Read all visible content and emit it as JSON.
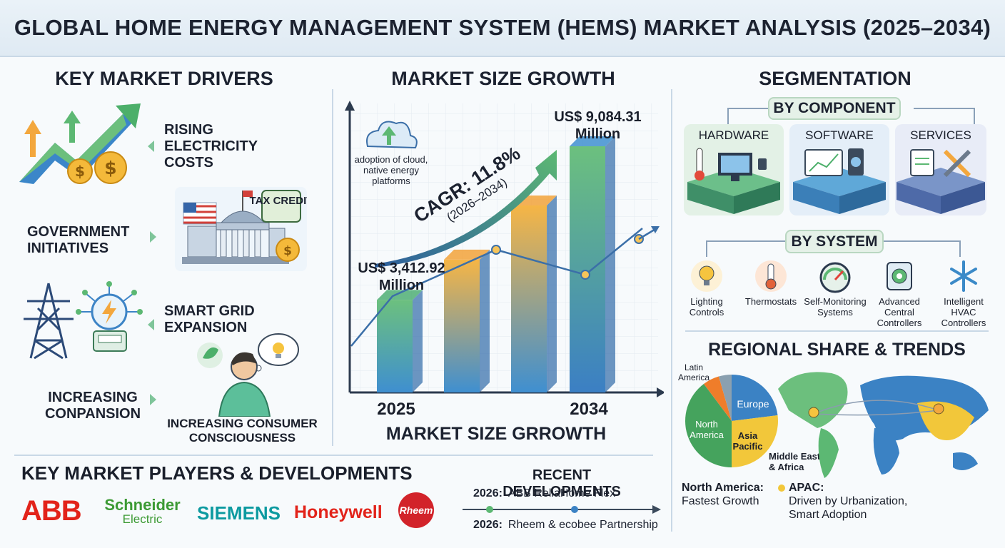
{
  "title": "GLOBAL HOME ENERGY MANAGEMENT SYSTEM (HEMS) MARKET ANALYSIS (2025–2034)",
  "drivers": {
    "heading": "KEY MARKET DRIVERS",
    "items": [
      {
        "label": "RISING ELECTRICITY COSTS",
        "icon": "rising-cost-icon"
      },
      {
        "label": "GOVERNMENT INITIATIVES",
        "icon": "government-building-icon"
      },
      {
        "label": "SMART GRID EXPANSION",
        "icon": "power-tower-icon"
      },
      {
        "label": "INCREASING CONPANSION",
        "icon": "consumer-thinking-icon"
      }
    ],
    "tax_badge": "TAX CREDIT",
    "consumer_caption": "INCREASING CONSUMER CONSCIOUSNESS"
  },
  "growth": {
    "heading": "MARKET SIZE GROWTH",
    "footer": "MARKET SIZE GRROWTH",
    "cloud_note": "adoption of cloud, native energy platforms",
    "cagr": "CAGR: 11.8%",
    "cagr_period": "(2026–2034)",
    "start_value": "US$ 3,412.92 Million",
    "end_value": "US$ 9,084.31 Million",
    "start_year": "2025",
    "end_year": "2034"
  },
  "chart_data": {
    "type": "bar",
    "categories": [
      "2025",
      "",
      "",
      "2034"
    ],
    "values": [
      3412.92,
      4900,
      6900,
      9084.31
    ],
    "labels": [
      "US$ 3,412.92 Million",
      "",
      "",
      "US$ 9,084.31 Million"
    ],
    "colors": [
      "#4fae74",
      "#f2a23a",
      "#f2a23a",
      "#3f8fd0"
    ],
    "annotation": "CAGR: 11.8% (2026–2034)"
  },
  "segmentation": {
    "heading": "SEGMENTATION",
    "by_component": "BY COMPONENT",
    "components": [
      {
        "label": "HARDWARE",
        "icon": "hardware-icon",
        "color": "#e3f1e6"
      },
      {
        "label": "SOFTWARE",
        "icon": "software-icon",
        "color": "#e4eef8"
      },
      {
        "label": "SERVICES",
        "icon": "services-icon",
        "color": "#e8ecf7"
      }
    ],
    "by_system": "BY SYSTEM",
    "systems": [
      {
        "label": "Lighting Controls",
        "icon": "bulb-icon"
      },
      {
        "label": "Thermostats",
        "icon": "thermometer-icon"
      },
      {
        "label": "Self-Monitoring Systems",
        "icon": "gauge-icon"
      },
      {
        "label": "Advanced Central Controllers",
        "icon": "controller-icon"
      },
      {
        "label": "Intelligent HVAC Controllers",
        "icon": "snowflake-icon"
      }
    ]
  },
  "regional": {
    "heading": "REGIONAL SHARE & TRENDS",
    "regions": {
      "latin_america": "Latin America",
      "europe": "Europe",
      "north_america": "North America",
      "asia_pacific": "Asia Pacific",
      "mea": "Middle East & Africa"
    },
    "na_title": "North America:",
    "na_text": "Fastest Growth",
    "apac_title": "APAC:",
    "apac_text": "Driven by Urbanization, Smart Adoption"
  },
  "players": {
    "heading": "KEY MARKET PLAYERS & DEVELOPMENTS",
    "logos": [
      "ABB",
      "Schneider Electric",
      "SIEMENS",
      "Honeywell",
      "Rheem"
    ],
    "schneider_top": "Schneider",
    "schneider_bottom": "Electric"
  },
  "developments": {
    "heading": "RECENT DEVELOPMENTS",
    "items": [
      {
        "year": "2026:",
        "text": "ABB ReliaHome Flex"
      },
      {
        "year": "2026:",
        "text": "Rheem & ecobee Partnership"
      }
    ]
  }
}
